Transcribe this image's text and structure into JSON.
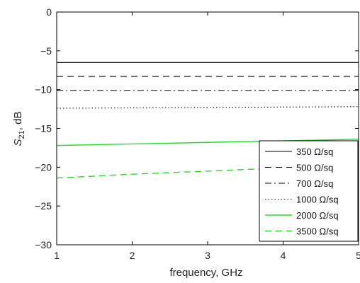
{
  "chart_data": {
    "type": "line",
    "title": "",
    "xlabel": "frequency, GHz",
    "ylabel_main": "S",
    "ylabel_sub": "21",
    "ylabel_suffix": ", dB",
    "xlim": [
      1,
      5
    ],
    "ylim": [
      -30,
      0
    ],
    "xticks": [
      "1",
      "2",
      "3",
      "4",
      "5"
    ],
    "yticks": [
      "0",
      "−5",
      "−10",
      "−15",
      "−20",
      "−25",
      "−30"
    ],
    "grid": false,
    "legend_position": "lower-right",
    "x": [
      1,
      2,
      3,
      4,
      5
    ],
    "series": [
      {
        "name": "350 Ω/sq",
        "color": "#000000",
        "dash": "solid",
        "values": [
          -6.5,
          -6.5,
          -6.5,
          -6.5,
          -6.5
        ]
      },
      {
        "name": "500 Ω/sq",
        "color": "#000000",
        "dash": "dashed",
        "values": [
          -8.3,
          -8.3,
          -8.3,
          -8.3,
          -8.3
        ]
      },
      {
        "name": "700 Ω/sq",
        "color": "#000000",
        "dash": "dashdot",
        "values": [
          -10.1,
          -10.1,
          -10.1,
          -10.1,
          -10.1
        ]
      },
      {
        "name": "1000 Ω/sq",
        "color": "#000000",
        "dash": "dotted",
        "values": [
          -12.4,
          -12.35,
          -12.3,
          -12.25,
          -12.2
        ]
      },
      {
        "name": "2000 Ω/sq",
        "color": "#22dd22",
        "dash": "solid",
        "values": [
          -17.2,
          -17.0,
          -16.8,
          -16.6,
          -16.4
        ]
      },
      {
        "name": "3500 Ω/sq",
        "color": "#22dd22",
        "dash": "dashed",
        "values": [
          -21.4,
          -20.9,
          -20.5,
          -20.1,
          -19.7
        ]
      }
    ]
  }
}
